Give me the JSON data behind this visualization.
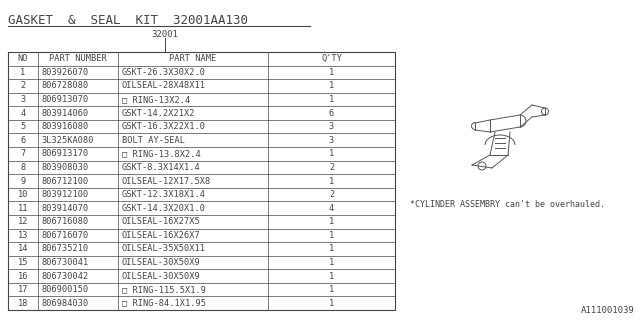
{
  "title": "GASKET  &  SEAL  KIT  32001AA130",
  "subtitle": "32001",
  "bg_color": "#ffffff",
  "table_bg": "#ffffff",
  "border_color": "#444444",
  "text_color": "#444444",
  "title_fontsize": 9,
  "font_size": 6.2,
  "watermark": "A111001039",
  "note": "*CYLINDER ASSEMBRY can't be overhauled.",
  "columns": [
    "NO",
    "PART NUMBER",
    "PART NAME",
    "Q'TY"
  ],
  "rows": [
    [
      "1",
      "803926070",
      "GSKT-26.3X30X2.0",
      "1"
    ],
    [
      "2",
      "806728080",
      "OILSEAL-28X48X11",
      "1"
    ],
    [
      "3",
      "806913070",
      "□ RING-13X2.4",
      "1"
    ],
    [
      "4",
      "803914060",
      "GSKT-14.2X21X2",
      "6"
    ],
    [
      "5",
      "803916080",
      "GSKT-16.3X22X1.0",
      "3"
    ],
    [
      "6",
      "3L325KA080",
      "BOLT AY-SEAL",
      "3"
    ],
    [
      "7",
      "806913170",
      "□ RING-13.8X2.4",
      "1"
    ],
    [
      "8",
      "803908030",
      "GSKT-8.3X14X1.4",
      "2"
    ],
    [
      "9",
      "806712100",
      "OILSEAL-12X17.5X8",
      "1"
    ],
    [
      "10",
      "803912100",
      "GSKT-12.3X18X1.4",
      "2"
    ],
    [
      "11",
      "803914070",
      "GSKT-14.3X20X1.0",
      "4"
    ],
    [
      "12",
      "806716080",
      "OILSEAL-16X27X5",
      "1"
    ],
    [
      "13",
      "806716070",
      "OILSEAL-16X26X7",
      "1"
    ],
    [
      "14",
      "806735210",
      "OILSEAL-35X50X11",
      "1"
    ],
    [
      "15",
      "806730041",
      "OILSEAL-30X50X9",
      "1"
    ],
    [
      "16",
      "806730042",
      "OILSEAL-30X50X9",
      "1"
    ],
    [
      "17",
      "806900150",
      "□ RING-115.5X1.9",
      "1"
    ],
    [
      "18",
      "806984030",
      "□ RING-84.1X1.95",
      "1"
    ]
  ]
}
